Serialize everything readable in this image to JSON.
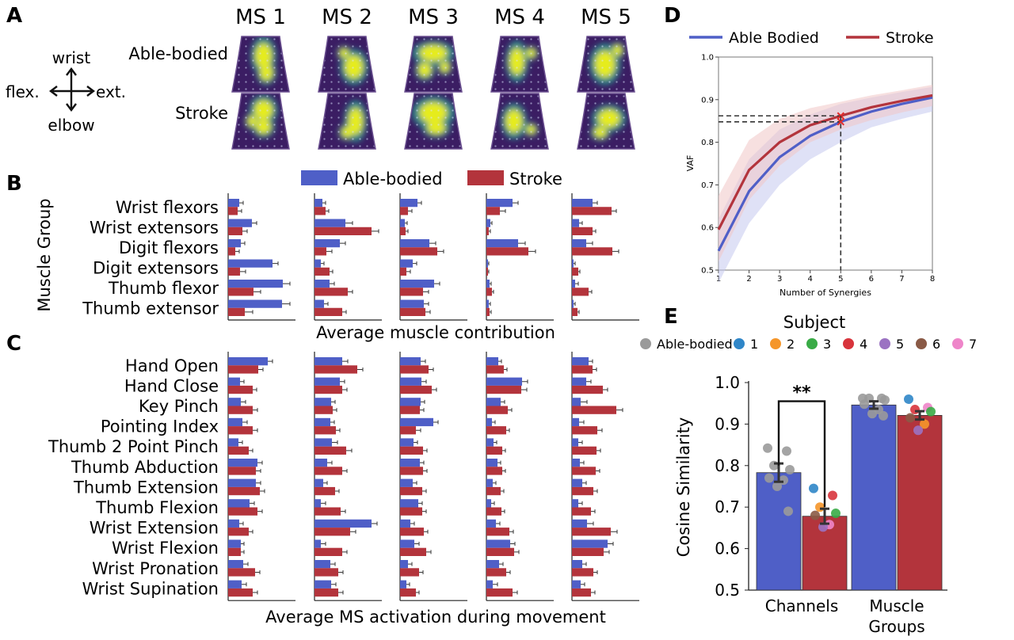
{
  "panel_labels": [
    "A",
    "B",
    "C",
    "D",
    "E"
  ],
  "colors": {
    "able": "#4f5fc7",
    "stroke": "#b3343c",
    "able_band": "#c4c9ef",
    "stroke_band": "#f0c7c7"
  },
  "panel_a": {
    "ms_labels": [
      "MS 1",
      "MS 2",
      "MS 3",
      "MS 4",
      "MS 5"
    ],
    "row_labels": [
      "Able-bodied",
      "Stroke"
    ],
    "compass": {
      "up": "wrist",
      "down": "elbow",
      "left": "flex.",
      "right": "ext."
    }
  },
  "legend_bc": {
    "able": "Able-bodied",
    "stroke": "Stroke"
  },
  "chart_data": [
    {
      "id": "B",
      "type": "bar",
      "orientation": "horizontal",
      "ylabel": "Muscle Group",
      "xlabel": "Average muscle contribution",
      "categories": [
        "Wrist flexors",
        "Wrist extensors",
        "Digit flexors",
        "Digit extensors",
        "Thumb flexor",
        "Thumb extensor"
      ],
      "panels": [
        "MS 1",
        "MS 2",
        "MS 3",
        "MS 4",
        "MS 5"
      ],
      "series": [
        {
          "name": "Able-bodied",
          "values": [
            [
              0.14,
              0.3,
              0.16,
              0.56,
              0.69,
              0.68
            ],
            [
              0.1,
              0.39,
              0.32,
              0.08,
              0.19,
              0.12
            ],
            [
              0.22,
              0.06,
              0.37,
              0.16,
              0.43,
              0.3
            ],
            [
              0.33,
              0.05,
              0.4,
              0.02,
              0.04,
              0.03
            ],
            [
              0.26,
              0.09,
              0.18,
              0.02,
              0.04,
              0.02
            ]
          ]
        },
        {
          "name": "Stroke",
          "values": [
            [
              0.12,
              0.18,
              0.09,
              0.15,
              0.32,
              0.21
            ],
            [
              0.14,
              0.72,
              0.15,
              0.19,
              0.42,
              0.35
            ],
            [
              0.1,
              0.07,
              0.47,
              0.08,
              0.29,
              0.32
            ],
            [
              0.17,
              0.03,
              0.53,
              0.02,
              0.07,
              0.04
            ],
            [
              0.5,
              0.26,
              0.51,
              0.08,
              0.21,
              0.07
            ]
          ]
        }
      ],
      "errors": [
        [
          0.05,
          0.06,
          0.05,
          0.07,
          0.09,
          0.1
        ],
        [
          0.04,
          0.09,
          0.07,
          0.04,
          0.06,
          0.05
        ],
        [
          0.05,
          0.03,
          0.08,
          0.05,
          0.07,
          0.06
        ],
        [
          0.07,
          0.02,
          0.09,
          0.01,
          0.02,
          0.02
        ],
        [
          0.06,
          0.04,
          0.08,
          0.02,
          0.04,
          0.02
        ]
      ]
    },
    {
      "id": "C",
      "type": "bar",
      "orientation": "horizontal",
      "xlabel": "Average MS activation during movement",
      "categories": [
        "Hand Open",
        "Hand Close",
        "Key Pinch",
        "Pointing Index",
        "Thumb 2 Point Pinch",
        "Thumb Abduction",
        "Thumb Extension",
        "Thumb Flexion",
        "Wrist Extension",
        "Wrist Flexion",
        "Wrist Pronation",
        "Wrist Supination"
      ],
      "panels": [
        "MS 1",
        "MS 2",
        "MS 3",
        "MS 4",
        "MS 5"
      ],
      "series": [
        {
          "name": "Able-bodied",
          "values": [
            [
              0.5,
              0.15,
              0.16,
              0.18,
              0.13,
              0.37,
              0.35,
              0.27,
              0.14,
              0.16,
              0.19,
              0.17
            ],
            [
              0.35,
              0.32,
              0.21,
              0.2,
              0.22,
              0.16,
              0.11,
              0.08,
              0.72,
              0.08,
              0.2,
              0.21
            ],
            [
              0.26,
              0.27,
              0.26,
              0.42,
              0.17,
              0.25,
              0.16,
              0.23,
              0.13,
              0.18,
              0.1,
              0.08
            ],
            [
              0.15,
              0.45,
              0.18,
              0.07,
              0.09,
              0.14,
              0.08,
              0.06,
              0.12,
              0.3,
              0.16,
              0.08
            ],
            [
              0.21,
              0.18,
              0.11,
              0.09,
              0.08,
              0.1,
              0.13,
              0.08,
              0.19,
              0.45,
              0.13,
              0.11
            ]
          ]
        },
        {
          "name": "Stroke",
          "values": [
            [
              0.38,
              0.31,
              0.31,
              0.31,
              0.26,
              0.35,
              0.4,
              0.37,
              0.26,
              0.16,
              0.34,
              0.31
            ],
            [
              0.54,
              0.35,
              0.23,
              0.27,
              0.4,
              0.35,
              0.26,
              0.33,
              0.45,
              0.35,
              0.3,
              0.3
            ],
            [
              0.36,
              0.4,
              0.25,
              0.2,
              0.29,
              0.29,
              0.28,
              0.28,
              0.3,
              0.33,
              0.24,
              0.2
            ],
            [
              0.22,
              0.44,
              0.27,
              0.25,
              0.2,
              0.2,
              0.18,
              0.19,
              0.29,
              0.35,
              0.25,
              0.33
            ],
            [
              0.26,
              0.39,
              0.56,
              0.32,
              0.31,
              0.3,
              0.27,
              0.24,
              0.49,
              0.4,
              0.27,
              0.24
            ]
          ]
        }
      ],
      "errors": [
        [
          0.06,
          0.05,
          0.06,
          0.06,
          0.05,
          0.06,
          0.06,
          0.06,
          0.05,
          0.04,
          0.06,
          0.06
        ],
        [
          0.07,
          0.06,
          0.05,
          0.05,
          0.07,
          0.06,
          0.05,
          0.06,
          0.07,
          0.06,
          0.06,
          0.06
        ],
        [
          0.06,
          0.06,
          0.05,
          0.06,
          0.05,
          0.05,
          0.05,
          0.05,
          0.05,
          0.06,
          0.05,
          0.04
        ],
        [
          0.04,
          0.07,
          0.05,
          0.04,
          0.04,
          0.04,
          0.04,
          0.04,
          0.05,
          0.06,
          0.05,
          0.06
        ],
        [
          0.05,
          0.06,
          0.08,
          0.06,
          0.05,
          0.05,
          0.05,
          0.05,
          0.08,
          0.07,
          0.05,
          0.05
        ]
      ]
    },
    {
      "id": "D",
      "type": "line",
      "xlabel": "Number of Synergies",
      "ylabel": "VAF",
      "xlim": [
        1,
        8
      ],
      "ylim": [
        0.5,
        1.0
      ],
      "x_ticks": [
        "1",
        "2",
        "3",
        "4",
        "5",
        "6",
        "7",
        "8"
      ],
      "y_ticks": [
        "0.5",
        "0.6",
        "0.7",
        "0.8",
        "0.9",
        "1.0"
      ],
      "x": [
        1,
        2,
        3,
        4,
        5,
        6,
        7,
        8
      ],
      "series": [
        {
          "name": "Able Bodied",
          "values": [
            0.545,
            0.685,
            0.765,
            0.815,
            0.848,
            0.872,
            0.89,
            0.905
          ],
          "band_low": [
            0.47,
            0.61,
            0.7,
            0.76,
            0.8,
            0.835,
            0.855,
            0.872
          ],
          "band_high": [
            0.62,
            0.76,
            0.83,
            0.865,
            0.89,
            0.905,
            0.918,
            0.93
          ]
        },
        {
          "name": "Stroke",
          "values": [
            0.595,
            0.735,
            0.8,
            0.84,
            0.862,
            0.882,
            0.897,
            0.91
          ],
          "band_low": [
            0.52,
            0.665,
            0.745,
            0.8,
            0.83,
            0.852,
            0.87,
            0.885
          ],
          "band_high": [
            0.675,
            0.805,
            0.855,
            0.88,
            0.895,
            0.91,
            0.922,
            0.935
          ]
        }
      ],
      "marked_points": [
        {
          "x": 5,
          "y": 0.862
        },
        {
          "x": 5,
          "y": 0.848
        }
      ]
    },
    {
      "id": "E",
      "type": "bar",
      "legend_title": "Subject",
      "legend": [
        {
          "label": "Able-bodied",
          "color": "#9a9a9a"
        },
        {
          "label": "1",
          "color": "#2f86c8"
        },
        {
          "label": "2",
          "color": "#f5962a"
        },
        {
          "label": "3",
          "color": "#39ab46"
        },
        {
          "label": "4",
          "color": "#d8343c"
        },
        {
          "label": "5",
          "color": "#9b72c2"
        },
        {
          "label": "6",
          "color": "#8a5a46"
        },
        {
          "label": "7",
          "color": "#ee85c9"
        }
      ],
      "ylabel": "Cosine Similarity",
      "ylim": [
        0.5,
        1.0
      ],
      "y_ticks": [
        "0.5",
        "0.6",
        "0.7",
        "0.8",
        "0.9",
        "1.0"
      ],
      "categories": [
        "Channels",
        "Muscle\nGroups"
      ],
      "category_lines": [
        [
          "Channels"
        ],
        [
          "Muscle",
          "Groups"
        ]
      ],
      "series": [
        {
          "name": "Able-bodied",
          "values": [
            0.783,
            0.946
          ],
          "errors": [
            0.022,
            0.009
          ]
        },
        {
          "name": "Stroke",
          "values": [
            0.678,
            0.921
          ],
          "errors": [
            0.018,
            0.01
          ]
        }
      ],
      "points": [
        {
          "group": 0,
          "series": 0,
          "ys": [
            0.842,
            0.835,
            0.8,
            0.79,
            0.77,
            0.765,
            0.75,
            0.69
          ],
          "colors": [
            "#9a9a9a",
            "#9a9a9a",
            "#9a9a9a",
            "#9a9a9a",
            "#9a9a9a",
            "#9a9a9a",
            "#9a9a9a",
            "#9a9a9a"
          ]
        },
        {
          "group": 0,
          "series": 1,
          "ys": [
            0.745,
            0.728,
            0.7,
            0.685,
            0.68,
            0.658,
            0.652
          ],
          "colors": [
            "#2f86c8",
            "#d8343c",
            "#f5962a",
            "#39ab46",
            "#8a5a46",
            "#ee85c9",
            "#9b72c2"
          ]
        },
        {
          "group": 1,
          "series": 0,
          "ys": [
            0.962,
            0.962,
            0.962,
            0.958,
            0.948,
            0.935,
            0.925,
            0.92
          ],
          "colors": [
            "#9a9a9a",
            "#9a9a9a",
            "#9a9a9a",
            "#9a9a9a",
            "#9a9a9a",
            "#9a9a9a",
            "#9a9a9a",
            "#9a9a9a"
          ]
        },
        {
          "group": 1,
          "series": 1,
          "ys": [
            0.96,
            0.94,
            0.935,
            0.93,
            0.915,
            0.9,
            0.885
          ],
          "colors": [
            "#2f86c8",
            "#ee85c9",
            "#d8343c",
            "#39ab46",
            "#8a5a46",
            "#f5962a",
            "#9b72c2"
          ]
        }
      ],
      "significance": "**"
    }
  ]
}
